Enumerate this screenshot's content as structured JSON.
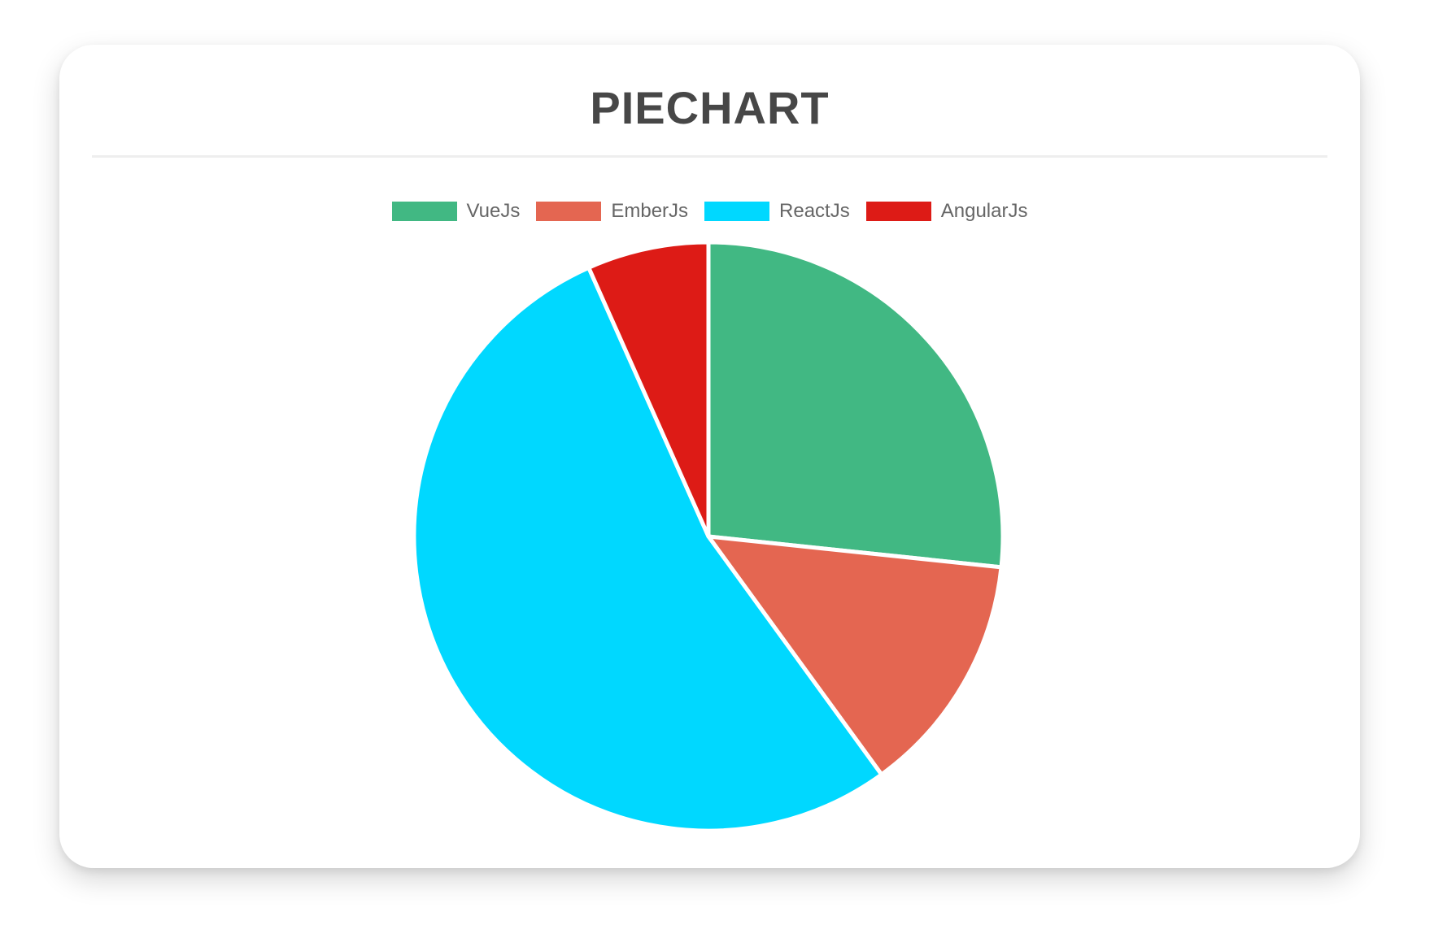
{
  "page": {
    "background": "#ffffff"
  },
  "card": {
    "background": "#ffffff"
  },
  "chart_data": {
    "type": "pie",
    "title": "PIECHART",
    "labels": [
      "VueJs",
      "EmberJs",
      "ReactJs",
      "AngularJs"
    ],
    "values": [
      40,
      20,
      80,
      10
    ],
    "percentages": [
      26.7,
      13.3,
      53.3,
      6.7
    ],
    "colors": [
      "#41B883",
      "#E46651",
      "#00D8FF",
      "#DD1B16"
    ],
    "slice_border_color": "#ffffff",
    "start_angle_deg": 0,
    "legend_position": "top",
    "legend_text_color": "#666666",
    "title_color": "#474747",
    "grid": "off"
  }
}
